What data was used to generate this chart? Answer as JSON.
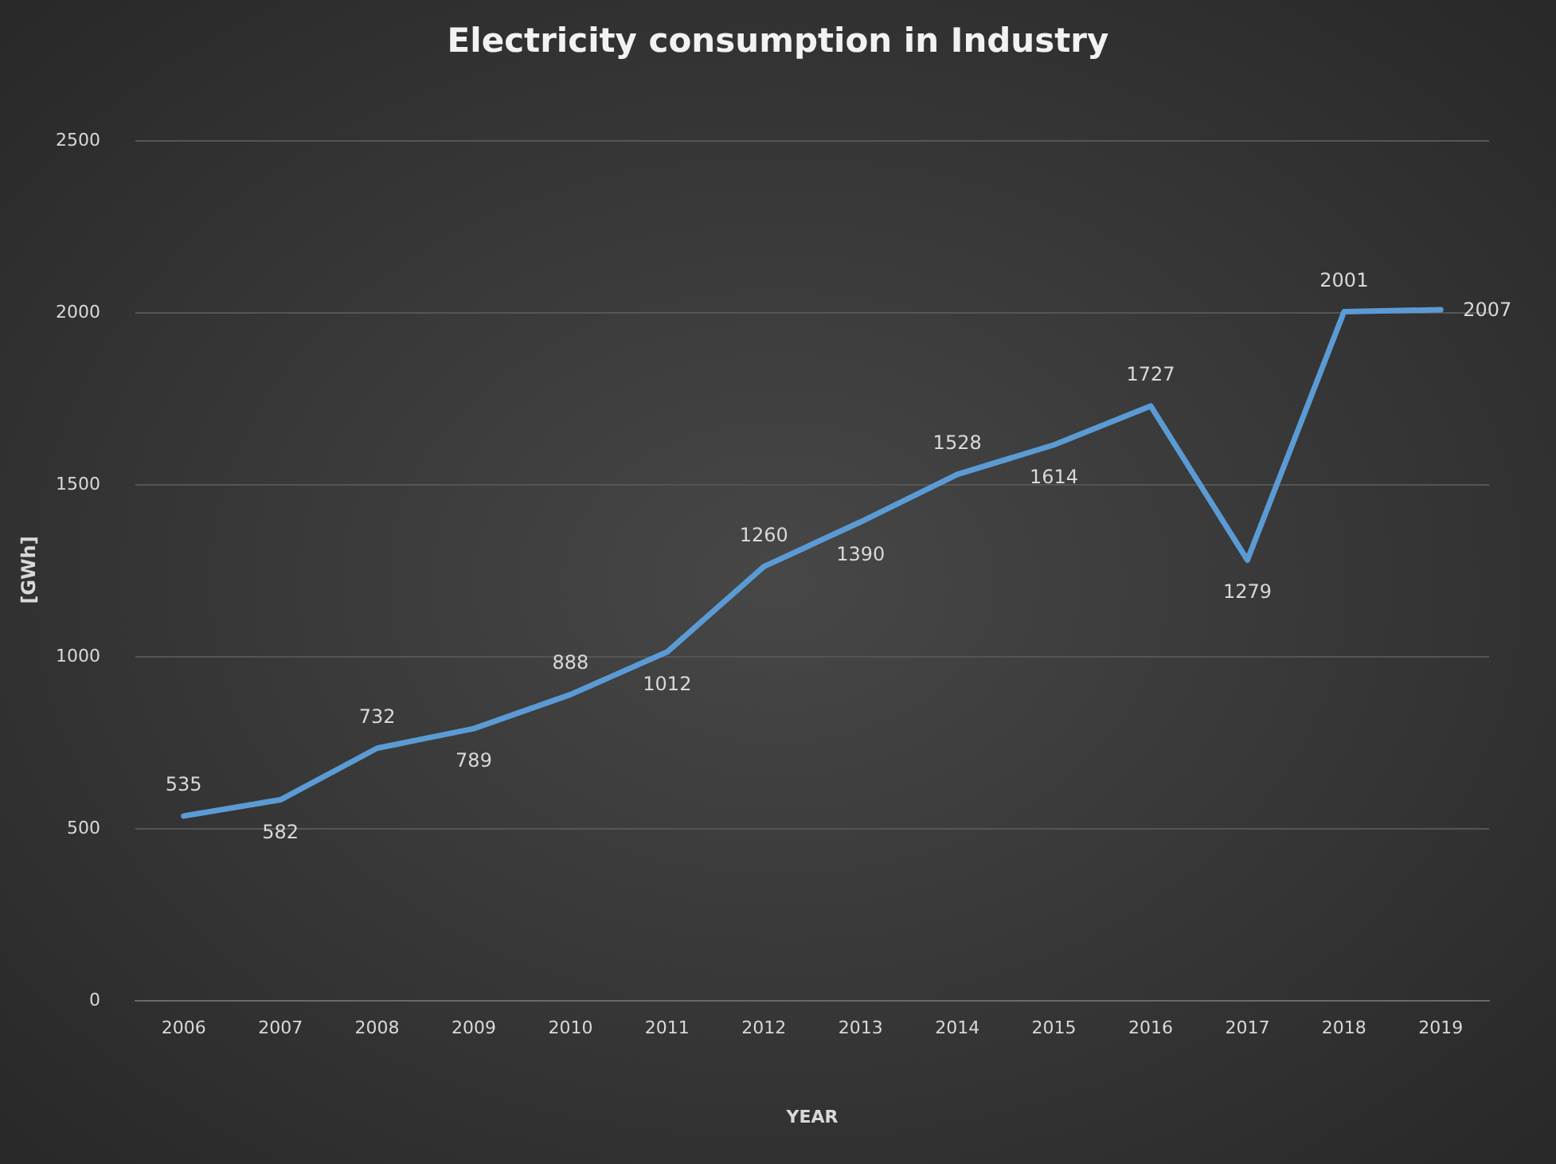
{
  "chart_data": {
    "type": "line",
    "title": "Electricity consumption in Industry",
    "xlabel": "YEAR",
    "ylabel": "[GWh]",
    "categories": [
      "2006",
      "2007",
      "2008",
      "2009",
      "2010",
      "2011",
      "2012",
      "2013",
      "2014",
      "2015",
      "2016",
      "2017",
      "2018",
      "2019"
    ],
    "series": [
      {
        "color": "#5b9bd5",
        "values": [
          535,
          582,
          732,
          789,
          888,
          1012,
          1260,
          1390,
          1528,
          1614,
          1727,
          1279,
          2001,
          2007
        ]
      }
    ],
    "ylim": [
      0,
      2500
    ],
    "yticks": [
      0,
      500,
      1000,
      1500,
      2000,
      2500
    ],
    "grid": "y",
    "data_labels": true,
    "marker": "none",
    "line_style": "solid"
  }
}
